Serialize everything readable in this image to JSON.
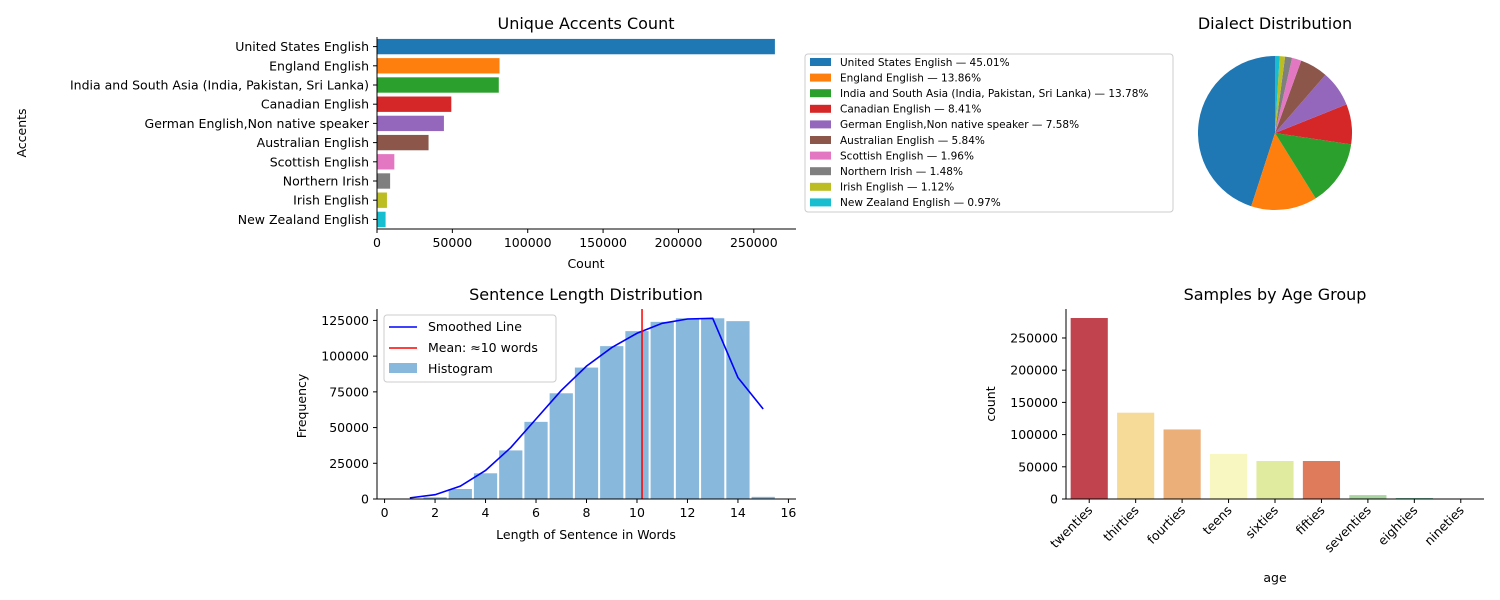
{
  "chart_data": [
    {
      "id": "accents",
      "type": "bar",
      "orientation": "horizontal",
      "title": "Unique Accents Count",
      "xlabel": "Count",
      "ylabel": "Accents",
      "categories": [
        "United States English",
        "England English",
        "India and South Asia (India, Pakistan, Sri Lanka)",
        "Canadian English",
        "German English,Non native speaker",
        "Australian English",
        "Scottish English",
        "Northern Irish",
        "Irish English",
        "New Zealand English"
      ],
      "values": [
        264000,
        81300,
        80800,
        49300,
        44400,
        34200,
        11500,
        8700,
        6600,
        5700
      ],
      "colors": [
        "#1f77b4",
        "#ff7f0e",
        "#2ca02c",
        "#d62728",
        "#9467bd",
        "#8c564b",
        "#e377c2",
        "#7f7f7f",
        "#bcbd22",
        "#17becf"
      ],
      "xlim": [
        0,
        278000
      ],
      "xticks": [
        0,
        50000,
        100000,
        150000,
        200000,
        250000
      ]
    },
    {
      "id": "dialects",
      "type": "pie",
      "title": "Dialect Distribution",
      "legend": "left",
      "slices": [
        {
          "label": "United States English — 45.01%",
          "value": 45.01,
          "color": "#1f77b4"
        },
        {
          "label": "England English — 13.86%",
          "value": 13.86,
          "color": "#ff7f0e"
        },
        {
          "label": "India and South Asia (India, Pakistan, Sri Lanka) — 13.78%",
          "value": 13.78,
          "color": "#2ca02c"
        },
        {
          "label": "Canadian English — 8.41%",
          "value": 8.41,
          "color": "#d62728"
        },
        {
          "label": "German English,Non native speaker — 7.58%",
          "value": 7.58,
          "color": "#9467bd"
        },
        {
          "label": "Australian English — 5.84%",
          "value": 5.84,
          "color": "#8c564b"
        },
        {
          "label": "Scottish English — 1.96%",
          "value": 1.96,
          "color": "#e377c2"
        },
        {
          "label": "Northern Irish — 1.48%",
          "value": 1.48,
          "color": "#7f7f7f"
        },
        {
          "label": "Irish English — 1.12%",
          "value": 1.12,
          "color": "#bcbd22"
        },
        {
          "label": "New Zealand English — 0.97%",
          "value": 0.97,
          "color": "#17becf"
        }
      ]
    },
    {
      "id": "sentence",
      "type": "bar",
      "title": "Sentence Length Distribution",
      "xlabel": "Length of Sentence in Words",
      "ylabel": "Frequency",
      "xlim": [
        -0.3,
        16.3
      ],
      "ylim": [
        0,
        133000
      ],
      "xticks": [
        0,
        2,
        4,
        6,
        8,
        10,
        12,
        14,
        16
      ],
      "yticks": [
        0,
        25000,
        50000,
        75000,
        100000,
        125000
      ],
      "histogram": {
        "name": "Histogram",
        "color": "#88b8dc",
        "bin_width": 1,
        "bins": [
          {
            "x": 1,
            "value": 300
          },
          {
            "x": 2,
            "value": 1200
          },
          {
            "x": 3,
            "value": 7000
          },
          {
            "x": 4,
            "value": 18000
          },
          {
            "x": 5,
            "value": 34000
          },
          {
            "x": 6,
            "value": 54000
          },
          {
            "x": 7,
            "value": 74000
          },
          {
            "x": 8,
            "value": 92000
          },
          {
            "x": 9,
            "value": 107000
          },
          {
            "x": 10,
            "value": 117500
          },
          {
            "x": 11,
            "value": 124000
          },
          {
            "x": 12,
            "value": 126500
          },
          {
            "x": 13,
            "value": 126500
          },
          {
            "x": 14,
            "value": 124500
          },
          {
            "x": 15,
            "value": 1500
          }
        ]
      },
      "smoothed": {
        "name": "Smoothed Line",
        "color": "#0000ff",
        "points": [
          [
            1,
            800
          ],
          [
            2,
            3000
          ],
          [
            3,
            9000
          ],
          [
            4,
            20000
          ],
          [
            5,
            36000
          ],
          [
            6,
            56000
          ],
          [
            7,
            76000
          ],
          [
            8,
            93000
          ],
          [
            9,
            106000
          ],
          [
            10,
            116000
          ],
          [
            11,
            123000
          ],
          [
            12,
            126000
          ],
          [
            13,
            126500
          ],
          [
            14,
            85000
          ],
          [
            15,
            63000
          ]
        ]
      },
      "mean": {
        "name": "Mean: ≈10 words",
        "value": 10.2,
        "color": "#ff0000"
      },
      "legend": "upper left"
    },
    {
      "id": "age",
      "type": "bar",
      "title": "Samples by Age Group",
      "xlabel": "age",
      "ylabel": "count",
      "categories": [
        "twenties",
        "thirties",
        "fourties",
        "teens",
        "sixties",
        "fifties",
        "seventies",
        "eighties",
        "nineties"
      ],
      "values": [
        281000,
        134000,
        108000,
        70000,
        59000,
        59000,
        6000,
        1500,
        300
      ],
      "colors": [
        "#c0434e",
        "#f5da98",
        "#ebb07a",
        "#f8f7c2",
        "#e1eb9f",
        "#df7a5b",
        "#a8d5a0",
        "#74c1a4",
        "#4a9fb6"
      ],
      "ylim": [
        0,
        295000
      ],
      "yticks": [
        0,
        50000,
        100000,
        150000,
        200000,
        250000
      ],
      "tick_rotation": 45
    }
  ]
}
